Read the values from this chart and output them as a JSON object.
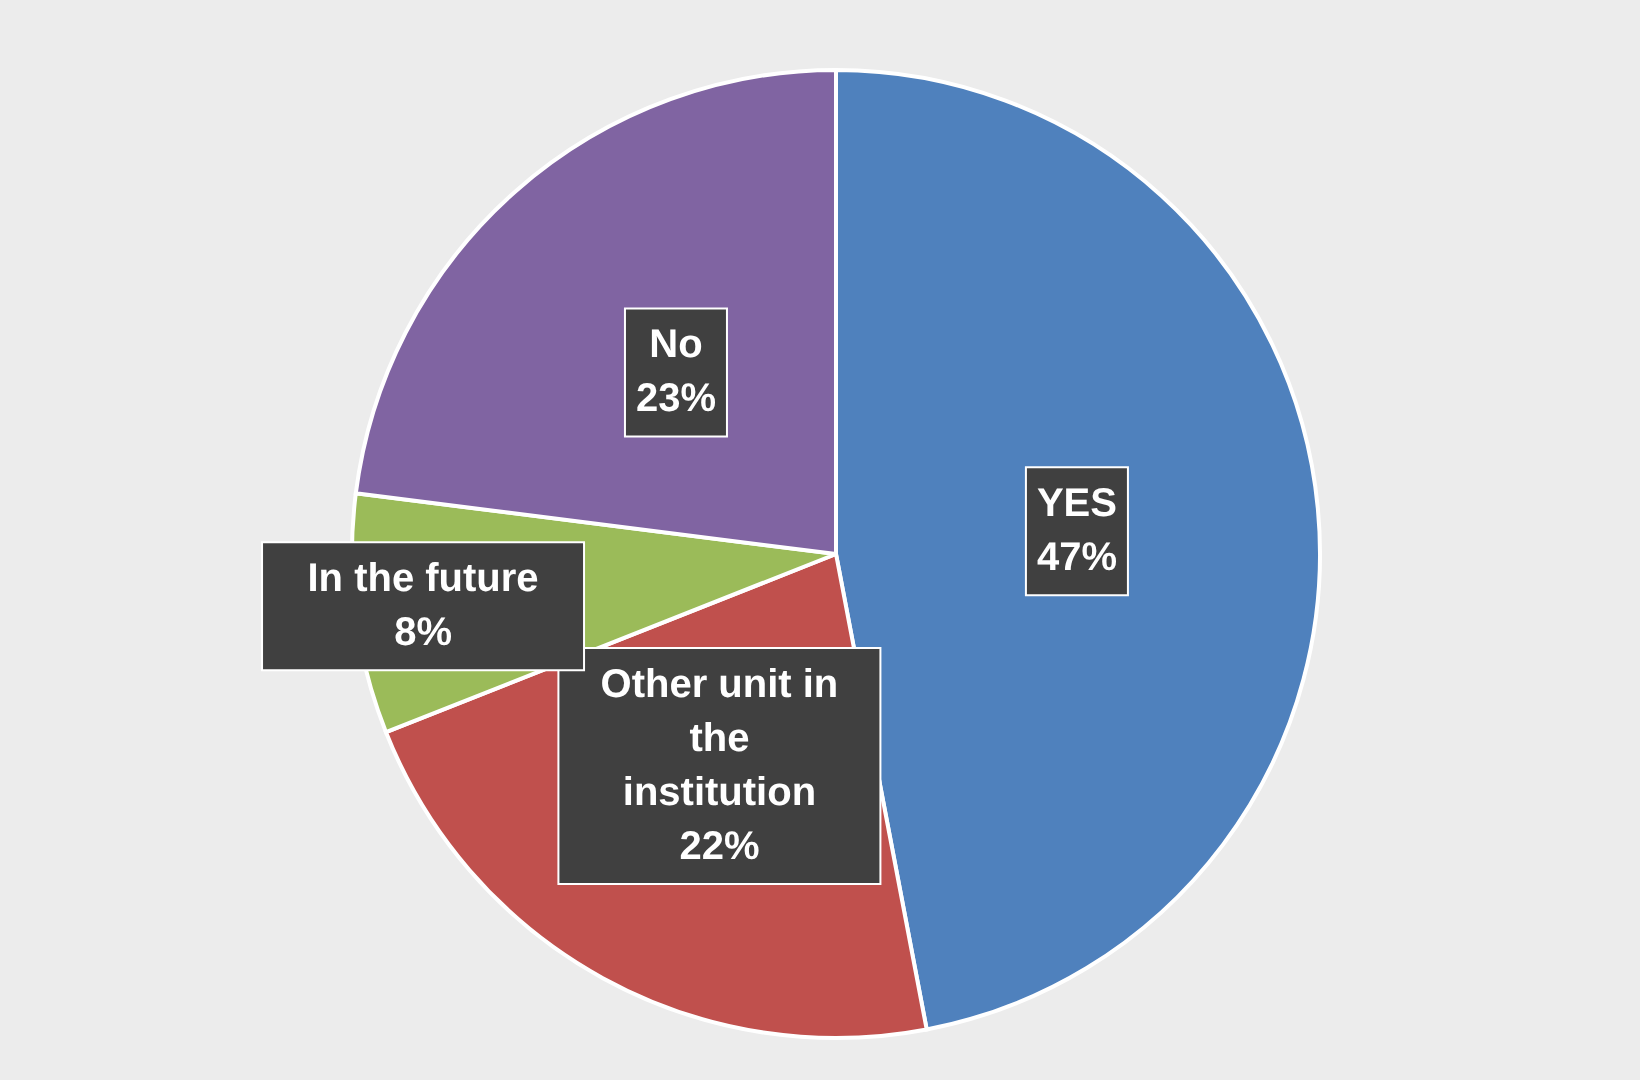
{
  "chart_data": {
    "type": "pie",
    "categories": [
      "YES",
      "Other unit in the institution",
      "In the future",
      "No"
    ],
    "values": [
      47,
      22,
      8,
      23
    ],
    "colors": [
      "#4f81bd",
      "#c0504d",
      "#9bbb59",
      "#8064a2"
    ],
    "value_labels": [
      "47%",
      "22%",
      "8%",
      "23%"
    ],
    "legend": false
  }
}
